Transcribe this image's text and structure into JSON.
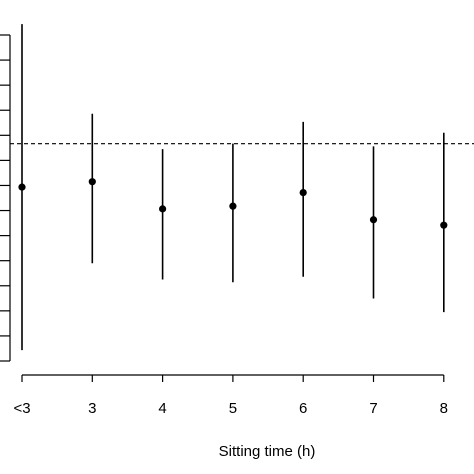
{
  "chart_data": {
    "type": "scatter",
    "subtype": "point-with-error-bars",
    "title": "",
    "xlabel": "Sitting time (h)",
    "ylabel": "",
    "categories": [
      "<3",
      "3",
      "4",
      "5",
      "6",
      "7",
      "8"
    ],
    "series": [
      {
        "values": [
          0.92,
          0.93,
          0.88,
          0.885,
          0.91,
          0.86,
          0.85
        ],
        "lower": [
          0.62,
          0.78,
          0.75,
          0.745,
          0.755,
          0.715,
          0.69
        ],
        "upper": [
          1.22,
          1.055,
          0.99,
          1.0,
          1.04,
          0.995,
          1.02
        ]
      }
    ],
    "reference_line": 1.0,
    "reference_line_style": "dashed",
    "ylim": [
      0.6,
      1.2
    ],
    "yticks_visible": 14,
    "grid": false,
    "legend": "none",
    "colors": {
      "marks": "#000000",
      "axes": "#000000"
    }
  }
}
